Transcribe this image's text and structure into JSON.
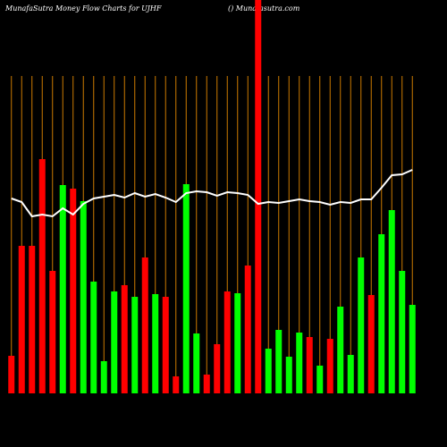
{
  "chart_data": {
    "type": "bar",
    "title": "MunafaSutra  Money Flow  Charts for UJHF",
    "subtitle": "() Munafasutra.com",
    "categories": [
      null,
      null,
      null,
      null,
      null,
      null,
      null,
      null,
      null,
      null,
      null,
      null,
      null,
      null,
      null,
      null,
      null,
      null,
      null,
      null,
      null,
      null,
      null,
      null,
      null,
      null,
      null,
      null,
      null,
      null,
      null,
      null,
      null,
      null,
      null,
      null,
      null,
      null,
      null,
      null
    ],
    "values": [
      42,
      165,
      165,
      262,
      137,
      233,
      229,
      215,
      125,
      36,
      114,
      121,
      108,
      152,
      111,
      108,
      19,
      234,
      67,
      21,
      55,
      114,
      112,
      143,
      440,
      50,
      71,
      41,
      68,
      63,
      31,
      61,
      97,
      43,
      152,
      110,
      178,
      205,
      137,
      99
    ],
    "colors": [
      "#ff0000",
      "#ff0000",
      "#ff0000",
      "#ff0000",
      "#ff0000",
      "#00ff00",
      "#ff0000",
      "#00ff00",
      "#00ff00",
      "#00ff00",
      "#00ff00",
      "#ff0000",
      "#00ff00",
      "#ff0000",
      "#00ff00",
      "#ff0000",
      "#ff0000",
      "#00ff00",
      "#00ff00",
      "#ff0000",
      "#ff0000",
      "#ff0000",
      "#00ff00",
      "#ff0000",
      "#ff0000",
      "#00ff00",
      "#00ff00",
      "#00ff00",
      "#00ff00",
      "#ff0000",
      "#00ff00",
      "#ff0000",
      "#00ff00",
      "#00ff00",
      "#00ff00",
      "#ff0000",
      "#00ff00",
      "#00ff00",
      "#00ff00",
      "#00ff00"
    ],
    "line": {
      "color": "#ffffff",
      "values": [
        218,
        214,
        198,
        200,
        198,
        207,
        200,
        212,
        218,
        220,
        222,
        219,
        224,
        220,
        223,
        219,
        214,
        224,
        226,
        225,
        221,
        225,
        224,
        222,
        212,
        214,
        213,
        215,
        217,
        215,
        214,
        211,
        214,
        213,
        217,
        217,
        230,
        244,
        245,
        250
      ]
    },
    "ylim": [
      0,
      440
    ]
  }
}
